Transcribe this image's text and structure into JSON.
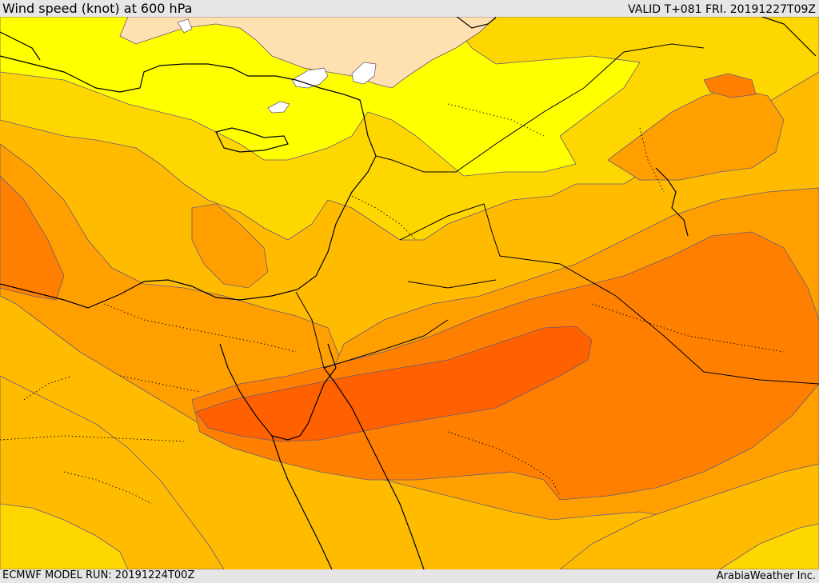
{
  "header": {
    "title": "Wind speed (knot) at 600 hPa",
    "valid": "VALID T+081 FRI. 20191227T09Z"
  },
  "footer": {
    "model_run": "ECMWF MODEL RUN: 20191224T00Z",
    "credit": "ArabiaWeather Inc."
  },
  "map": {
    "variable": "wind speed",
    "unit": "knot",
    "level": "600 hPa",
    "colors": {
      "very_light": "#ffe0b0",
      "light_yellow": "#ffff00",
      "yellow": "#ffd700",
      "amber": "#ffbb00",
      "orange": "#ffa000",
      "dark_orange": "#ff8000",
      "red_orange": "#ff6000",
      "calm": "#ffffff"
    }
  }
}
